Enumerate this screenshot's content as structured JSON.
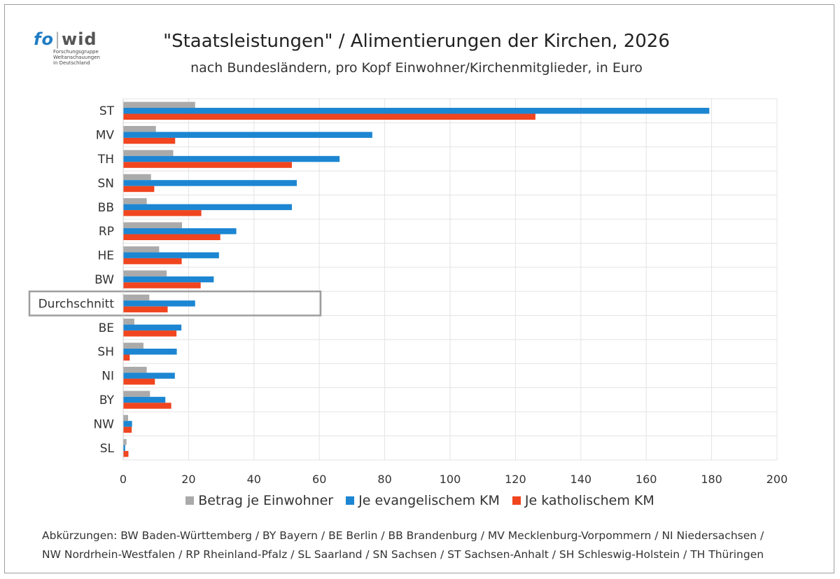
{
  "logo": {
    "brand_a": "fo",
    "brand_sep": "|",
    "brand_b": "wid",
    "line1": "Forschungsgruppe",
    "line2": "Weltanschauungen",
    "line3": "in Deutschland"
  },
  "colors": {
    "einwohner": "#aaaaaa",
    "evangelisch": "#1c86d2",
    "katholisch": "#f0451f",
    "highlight_border": "#9e9e9e",
    "grid": "#e3e3e3"
  },
  "chart_data": {
    "type": "bar",
    "orientation": "horizontal",
    "title": "\"Staatsleistungen\" / Alimentierungen der Kirchen, 2026",
    "subtitle": "nach Bundesländern, pro Kopf Einwohner/Kirchenmitglieder, in Euro",
    "categories": [
      "ST",
      "MV",
      "TH",
      "SN",
      "BB",
      "RP",
      "HE",
      "BW",
      "Durchschnitt",
      "BE",
      "SH",
      "NI",
      "BY",
      "NW",
      "SL"
    ],
    "highlighted_category": "Durchschnitt",
    "series": [
      {
        "name": "Betrag je Einwohner",
        "key": "einwohner",
        "values": [
          22,
          10,
          15.3,
          8.5,
          7.2,
          18,
          11,
          13.3,
          8,
          3.4,
          6.2,
          7.2,
          8.2,
          1.5,
          1
        ]
      },
      {
        "name": "Je evangelischem KM",
        "key": "evangelisch",
        "values": [
          179.3,
          76.2,
          66.2,
          53.1,
          51.6,
          34.6,
          29.3,
          27.7,
          22,
          17.8,
          16.4,
          15.8,
          12.9,
          2.7,
          0.6
        ]
      },
      {
        "name": "Je katholischem KM",
        "key": "katholisch",
        "values": [
          126.1,
          15.9,
          51.6,
          9.5,
          23.9,
          29.7,
          17.9,
          23.7,
          13.6,
          16.3,
          2,
          9.7,
          14.7,
          2.6,
          1.6
        ]
      }
    ],
    "xlim": [
      0,
      200
    ],
    "xticks": [
      0,
      20,
      40,
      60,
      80,
      100,
      120,
      140,
      160,
      180,
      200
    ],
    "grid": true,
    "legend_position": "bottom"
  },
  "abbreviations": {
    "line1": "Abkürzungen: BW Baden-Württemberg / BY Bayern / BE Berlin / BB Brandenburg / MV Mecklenburg-Vorpommern / NI Niedersachsen /",
    "line2": "NW Nordrhein-Westfalen / RP Rheinland-Pfalz / SL Saarland / SN Sachsen / ST Sachsen-Anhalt / SH Schleswig-Holstein / TH Thüringen"
  }
}
